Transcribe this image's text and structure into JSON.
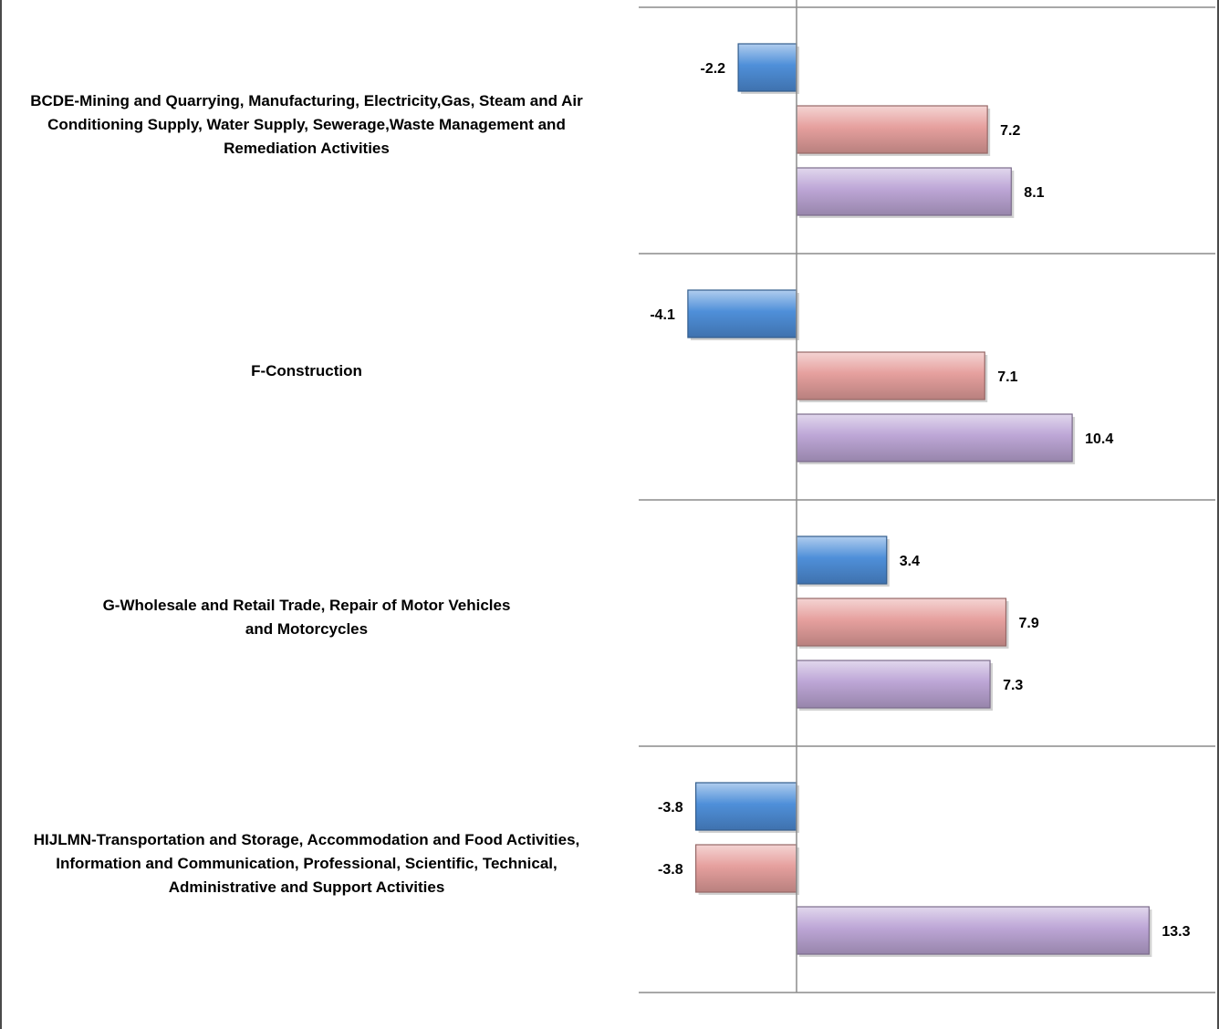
{
  "chart_data": {
    "type": "bar",
    "orientation": "horizontal",
    "categories": [
      "BCDE-Mining and Quarrying, Manufacturing, Electricity,Gas, Steam and Air Conditioning Supply, Water Supply, Sewerage,Waste Management and Remediation Activities",
      "F-Construction",
      "G-Wholesale and Retail Trade, Repair of Motor Vehicles and Motorcycles",
      "HIJLMN-Transportation and Storage, Accommodation and Food Activities, Information and Communication, Professional, Scientific, Technical, Administrative and Support Activities"
    ],
    "category_lines": [
      [
        "BCDE-Mining and Quarrying, Manufacturing, Electricity,Gas, Steam and Air",
        "Conditioning Supply, Water Supply, Sewerage,Waste Management and",
        "Remediation Activities"
      ],
      [
        "F-Construction"
      ],
      [
        "G-Wholesale and Retail Trade, Repair of Motor Vehicles",
        "and Motorcycles"
      ],
      [
        "HIJLMN-Transportation and Storage, Accommodation and Food Activities,",
        "Information and Communication, Professional, Scientific, Technical,",
        "Administrative and Support Activities"
      ]
    ],
    "series": [
      {
        "values": [
          -2.2,
          -4.1,
          3.4,
          -3.8
        ],
        "color": "#4f8fd9"
      },
      {
        "values": [
          7.2,
          7.1,
          7.9,
          -3.8
        ],
        "color": "#e6a09e"
      },
      {
        "values": [
          8.1,
          10.4,
          7.3,
          13.3
        ],
        "color": "#bda6d6"
      }
    ],
    "data_labels": [
      [
        "-2.2",
        "-4.1",
        "3.4",
        "-3.8"
      ],
      [
        "7.2",
        "7.1",
        "7.9",
        "-3.8"
      ],
      [
        "8.1",
        "10.4",
        "7.3",
        "13.3"
      ]
    ],
    "xlim": [
      -6.0,
      16.0
    ],
    "gridlines": "horizontal category separators",
    "legend": "none",
    "title": "",
    "xlabel": "",
    "ylabel": ""
  }
}
